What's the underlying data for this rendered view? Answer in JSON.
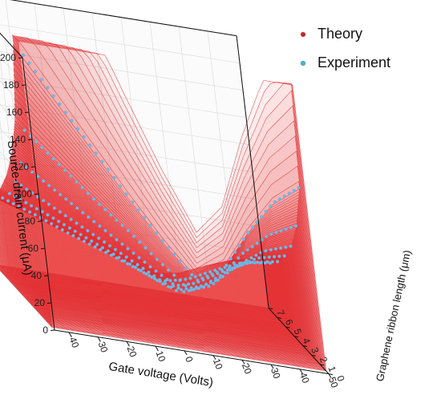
{
  "chart_data": {
    "type": "surface-3d",
    "xlabel": "Gate voltage (Volts)",
    "ylabel": "Graphene ribbon length (μm)",
    "zlabel": "Source-drain current (μA)",
    "x_ticks": [
      -40,
      -30,
      -20,
      -10,
      0,
      10,
      20,
      30,
      40,
      50
    ],
    "y_ticks": [
      0,
      1,
      2,
      3,
      4,
      5,
      6,
      7
    ],
    "z_ticks": [
      0,
      20,
      40,
      60,
      80,
      100,
      120,
      140,
      160,
      180,
      200
    ],
    "xlim": [
      -45,
      50
    ],
    "ylim": [
      0,
      7
    ],
    "zlim": [
      0,
      200
    ],
    "grid": true,
    "legend_position": "top-right",
    "series": [
      {
        "name": "Theory",
        "color": "#d42020",
        "marker": "sphere"
      },
      {
        "name": "Experiment",
        "color": "#3fb6d9",
        "marker": "sphere"
      }
    ],
    "experiment_curves": [
      {
        "length_um": 1,
        "x": [
          -40,
          -30,
          -20,
          -10,
          0,
          10,
          20,
          30,
          40,
          50
        ],
        "y": [
          190,
          160,
          130,
          100,
          72,
          48,
          60,
          90,
          115,
          130
        ]
      },
      {
        "length_um": 2,
        "x": [
          -40,
          -30,
          -20,
          -10,
          0,
          10,
          20,
          30,
          40,
          50
        ],
        "y": [
          130,
          110,
          90,
          72,
          52,
          34,
          45,
          68,
          85,
          95
        ]
      },
      {
        "length_um": 3,
        "x": [
          -40,
          -30,
          -20,
          -10,
          0,
          10,
          20,
          30,
          40,
          50
        ],
        "y": [
          100,
          85,
          70,
          55,
          40,
          26,
          34,
          52,
          66,
          73
        ]
      },
      {
        "length_um": 4,
        "x": [
          -40,
          -30,
          -20,
          -10,
          0,
          10,
          20,
          30,
          40,
          50
        ],
        "y": [
          80,
          68,
          56,
          44,
          32,
          20,
          27,
          42,
          54,
          59
        ]
      },
      {
        "length_um": 5,
        "x": [
          -40,
          -30,
          -20,
          -10,
          0,
          10,
          20,
          30,
          40,
          50
        ],
        "y": [
          65,
          56,
          46,
          36,
          26,
          16,
          22,
          34,
          44,
          48
        ]
      },
      {
        "length_um": 6,
        "x": [
          -40,
          -30,
          -20,
          -10,
          0,
          10,
          20,
          30,
          40,
          50
        ],
        "y": [
          55,
          47,
          38,
          30,
          22,
          13,
          18,
          28,
          37,
          40
        ]
      }
    ]
  }
}
